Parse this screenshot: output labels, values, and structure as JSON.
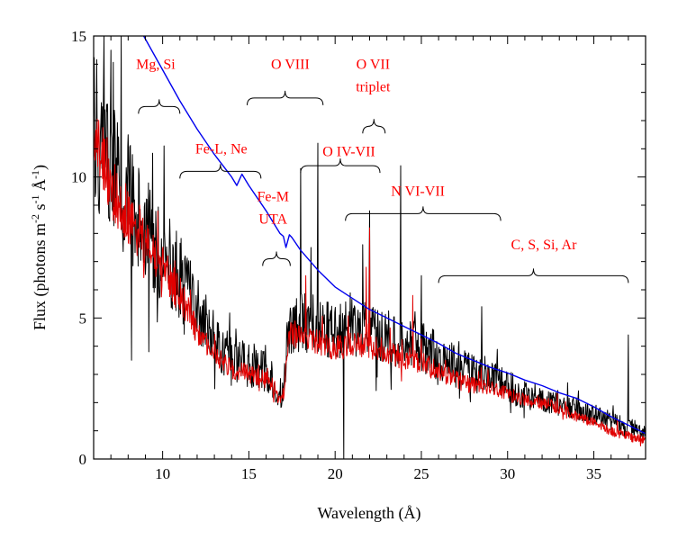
{
  "chart_data": {
    "type": "line",
    "title": "",
    "xlabel": "Wavelength (Å)",
    "ylabel_parts": [
      "Flux (photons m",
      "-2",
      " s",
      "-1",
      " Å",
      "-1",
      ")"
    ],
    "xlim": [
      6,
      38
    ],
    "ylim": [
      0,
      15
    ],
    "x_ticks": [
      10,
      15,
      20,
      25,
      30,
      35
    ],
    "y_ticks": [
      0,
      5,
      10,
      15
    ],
    "x_tick_labels": [
      "10",
      "15",
      "20",
      "25",
      "30",
      "35"
    ],
    "y_tick_labels": [
      "0",
      "5",
      "10",
      "15"
    ],
    "grid": false,
    "legend": "none",
    "colors": {
      "black": "#000000",
      "red": "#e00000",
      "blue": "#0000ee",
      "annotation": "#ff0000"
    },
    "series": [
      {
        "name": "observed spectrum (black)",
        "color": "#000000",
        "anchors": [
          [
            6.0,
            12.0
          ],
          [
            7.0,
            10.3
          ],
          [
            8.0,
            9.2
          ],
          [
            9.0,
            8.1
          ],
          [
            10.0,
            7.3
          ],
          [
            11.0,
            6.4
          ],
          [
            12.0,
            5.3
          ],
          [
            13.0,
            4.2
          ],
          [
            14.0,
            3.6
          ],
          [
            15.0,
            3.3
          ],
          [
            16.0,
            3.1
          ],
          [
            17.0,
            2.2
          ],
          [
            17.3,
            4.7
          ],
          [
            18.0,
            5.0
          ],
          [
            19.0,
            4.7
          ],
          [
            20.0,
            4.4
          ],
          [
            21.0,
            4.6
          ],
          [
            22.0,
            4.5
          ],
          [
            23.0,
            4.3
          ],
          [
            24.0,
            4.2
          ],
          [
            25.0,
            4.0
          ],
          [
            26.0,
            3.6
          ],
          [
            27.0,
            3.3
          ],
          [
            28.0,
            3.0
          ],
          [
            29.0,
            2.9
          ],
          [
            30.0,
            2.6
          ],
          [
            31.0,
            2.3
          ],
          [
            32.0,
            2.2
          ],
          [
            33.0,
            2.0
          ],
          [
            34.0,
            1.8
          ],
          [
            35.0,
            1.6
          ],
          [
            36.0,
            1.3
          ],
          [
            37.0,
            1.1
          ],
          [
            38.0,
            0.9
          ]
        ],
        "noise": 1.4,
        "lines": [
          [
            6.6,
            15.0
          ],
          [
            7.0,
            14.5
          ],
          [
            7.6,
            15.0
          ],
          [
            8.0,
            11.5
          ],
          [
            8.2,
            3.5
          ],
          [
            9.2,
            3.8
          ],
          [
            18.0,
            10.3
          ],
          [
            18.6,
            7.5
          ],
          [
            19.0,
            11.2
          ],
          [
            20.5,
            0.0
          ],
          [
            21.6,
            7.6
          ],
          [
            22.0,
            8.8
          ],
          [
            23.8,
            10.4
          ],
          [
            25.0,
            6.5
          ],
          [
            28.5,
            5.4
          ],
          [
            37.0,
            4.4
          ]
        ]
      },
      {
        "name": "model spectrum (red)",
        "color": "#e00000",
        "anchors": [
          [
            6.0,
            11.5
          ],
          [
            7.0,
            9.7
          ],
          [
            8.0,
            8.6
          ],
          [
            9.0,
            7.6
          ],
          [
            10.0,
            6.8
          ],
          [
            11.0,
            5.8
          ],
          [
            12.0,
            4.6
          ],
          [
            13.0,
            3.6
          ],
          [
            14.0,
            3.2
          ],
          [
            15.0,
            3.0
          ],
          [
            16.0,
            2.8
          ],
          [
            17.0,
            2.0
          ],
          [
            17.3,
            4.4
          ],
          [
            18.0,
            4.4
          ],
          [
            19.0,
            4.1
          ],
          [
            20.0,
            3.9
          ],
          [
            21.0,
            4.1
          ],
          [
            22.0,
            4.0
          ],
          [
            23.0,
            3.8
          ],
          [
            24.0,
            3.6
          ],
          [
            25.0,
            3.4
          ],
          [
            26.0,
            3.1
          ],
          [
            27.0,
            2.8
          ],
          [
            28.0,
            2.6
          ],
          [
            29.0,
            2.5
          ],
          [
            30.0,
            2.3
          ],
          [
            31.0,
            2.1
          ],
          [
            32.0,
            2.0
          ],
          [
            33.0,
            1.8
          ],
          [
            34.0,
            1.5
          ],
          [
            35.0,
            1.3
          ],
          [
            36.0,
            1.0
          ],
          [
            37.0,
            0.8
          ],
          [
            38.0,
            0.7
          ]
        ],
        "noise": 0.7,
        "lines": [
          [
            8.2,
            8.0
          ],
          [
            9.5,
            7.5
          ],
          [
            18.3,
            6.5
          ],
          [
            21.8,
            6.8
          ],
          [
            22.0,
            8.2
          ],
          [
            24.5,
            5.8
          ]
        ]
      },
      {
        "name": "continuum model (blue)",
        "color": "#0000ee",
        "points": [
          [
            8.9,
            15.0
          ],
          [
            10.0,
            13.8
          ],
          [
            11.0,
            12.7
          ],
          [
            12.0,
            11.7
          ],
          [
            13.0,
            10.8
          ],
          [
            14.0,
            10.0
          ],
          [
            14.3,
            9.7
          ],
          [
            14.6,
            10.1
          ],
          [
            15.0,
            9.7
          ],
          [
            16.0,
            8.8
          ],
          [
            16.8,
            8.0
          ],
          [
            17.0,
            7.9
          ],
          [
            17.15,
            7.5
          ],
          [
            17.35,
            7.95
          ],
          [
            17.5,
            7.85
          ],
          [
            18.0,
            7.4
          ],
          [
            19.0,
            6.7
          ],
          [
            20.0,
            6.1
          ],
          [
            21.0,
            5.7
          ],
          [
            22.0,
            5.3
          ],
          [
            23.0,
            5.0
          ],
          [
            24.0,
            4.7
          ],
          [
            25.0,
            4.4
          ],
          [
            26.0,
            4.1
          ],
          [
            27.0,
            3.75
          ],
          [
            28.0,
            3.5
          ],
          [
            29.0,
            3.25
          ],
          [
            30.0,
            3.05
          ],
          [
            31.0,
            2.8
          ],
          [
            32.0,
            2.6
          ],
          [
            33.0,
            2.35
          ],
          [
            34.0,
            2.15
          ],
          [
            35.0,
            1.85
          ],
          [
            36.0,
            1.5
          ],
          [
            37.0,
            1.2
          ],
          [
            38.0,
            0.9
          ]
        ]
      }
    ],
    "annotations": [
      {
        "text": "Mg, Si",
        "x": 9.6,
        "y": 14.0,
        "bracket": [
          8.6,
          11.0
        ],
        "bracket_y": 12.5
      },
      {
        "text": "O VIII",
        "x": 17.4,
        "y": 14.0,
        "bracket": [
          14.9,
          19.3
        ],
        "bracket_y": 12.8
      },
      {
        "text": "O VII",
        "x": 22.2,
        "y": 14.0
      },
      {
        "text": "triplet",
        "x": 22.2,
        "y": 13.2,
        "bracket": [
          21.6,
          22.9
        ],
        "bracket_y": 11.8
      },
      {
        "text": "Fe-L, Ne",
        "x": 13.4,
        "y": 11.0,
        "bracket": [
          11.0,
          15.7
        ],
        "bracket_y": 10.2
      },
      {
        "text": "O IV-VII",
        "x": 20.8,
        "y": 10.9,
        "bracket": [
          18.0,
          22.6
        ],
        "bracket_y": 10.4
      },
      {
        "text": "Fe-M",
        "x": 16.4,
        "y": 9.3
      },
      {
        "text": "UTA",
        "x": 16.4,
        "y": 8.5,
        "bracket": [
          15.8,
          17.4
        ],
        "bracket_y": 7.1
      },
      {
        "text": "N VI-VII",
        "x": 24.8,
        "y": 9.5,
        "bracket": [
          20.6,
          29.6
        ],
        "bracket_y": 8.7
      },
      {
        "text": "C, S, Si, Ar",
        "x": 32.1,
        "y": 7.6,
        "bracket": [
          26.0,
          37.0
        ],
        "bracket_y": 6.5
      }
    ]
  }
}
